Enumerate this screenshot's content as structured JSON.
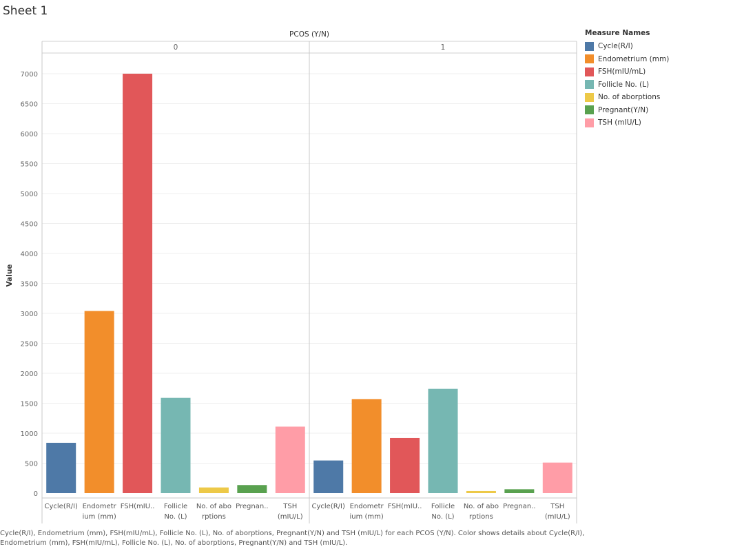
{
  "sheet_title": "Sheet 1",
  "caption": "Cycle(R/I), Endometrium (mm), FSH(mIU/mL), Follicle No. (L), No. of aborptions, Pregnant(Y/N) and TSH (mIU/L) for each PCOS (Y/N).  Color shows details about Cycle(R/I), Endometrium (mm), FSH(mIU/mL), Follicle No. (L), No. of aborptions, Pregnant(Y/N) and TSH (mIU/L).",
  "legend": {
    "title": "Measure Names",
    "items": [
      {
        "label": "Cycle(R/I)",
        "color": "#4e79a7"
      },
      {
        "label": "Endometrium (mm)",
        "color": "#f28e2b"
      },
      {
        "label": "FSH(mIU/mL)",
        "color": "#e15759"
      },
      {
        "label": "Follicle No. (L)",
        "color": "#76b7b2"
      },
      {
        "label": "No. of aborptions",
        "color": "#edc948"
      },
      {
        "label": "Pregnant(Y/N)",
        "color": "#59a14f"
      },
      {
        "label": "TSH (mIU/L)",
        "color": "#ff9da7"
      }
    ]
  },
  "chart_data": {
    "type": "bar",
    "title": "PCOS (Y/N)",
    "ylabel": "Value",
    "xlabel": "",
    "ylim": [
      0,
      7000
    ],
    "yticks": [
      0,
      500,
      1000,
      1500,
      2000,
      2500,
      3000,
      3500,
      4000,
      4500,
      5000,
      5500,
      6000,
      6500,
      7000
    ],
    "grid": true,
    "categories": [
      {
        "name": "Cycle(R/I)",
        "tick": [
          "Cycle(R/I)"
        ]
      },
      {
        "name": "Endometrium (mm)",
        "tick": [
          "Endometr",
          "ium (mm)"
        ]
      },
      {
        "name": "FSH(mIU/mL)",
        "tick": [
          "FSH(mIU.."
        ]
      },
      {
        "name": "Follicle No. (L)",
        "tick": [
          "Follicle",
          "No. (L)"
        ]
      },
      {
        "name": "No. of aborptions",
        "tick": [
          "No. of abo",
          "rptions"
        ]
      },
      {
        "name": "Pregnant(Y/N)",
        "tick": [
          "Pregnan.."
        ]
      },
      {
        "name": "TSH (mIU/L)",
        "tick": [
          "TSH",
          "(mIU/L)"
        ]
      }
    ],
    "panels": [
      {
        "header": "0",
        "values": [
          840,
          3040,
          7000,
          1590,
          95,
          135,
          1110
        ]
      },
      {
        "header": "1",
        "values": [
          545,
          1570,
          920,
          1740,
          35,
          65,
          510
        ]
      }
    ]
  }
}
